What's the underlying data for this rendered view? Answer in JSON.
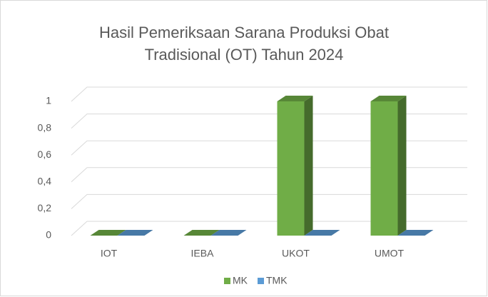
{
  "chart_data": {
    "type": "bar3d",
    "title": "Hasil Pemeriksaan Sarana Produksi Obat Tradisional (OT) Tahun 2024",
    "categories": [
      "IOT",
      "IEBA",
      "UKOT",
      "UMOT"
    ],
    "series": [
      {
        "name": "MK",
        "color": "#70ad47",
        "values": [
          0,
          0,
          1,
          1
        ]
      },
      {
        "name": "TMK",
        "color": "#5b9bd5",
        "values": [
          0,
          0,
          0,
          0
        ]
      }
    ],
    "ylim": [
      0,
      1
    ],
    "yticks": [
      0,
      {
        "value": 0.2,
        "label": "0,2"
      },
      {
        "value": 0.4,
        "label": "0,4"
      },
      {
        "value": 0.6,
        "label": "0,6"
      },
      {
        "value": 0.8,
        "label": "0,8"
      },
      1
    ],
    "grid": true,
    "legend": "bottom"
  }
}
